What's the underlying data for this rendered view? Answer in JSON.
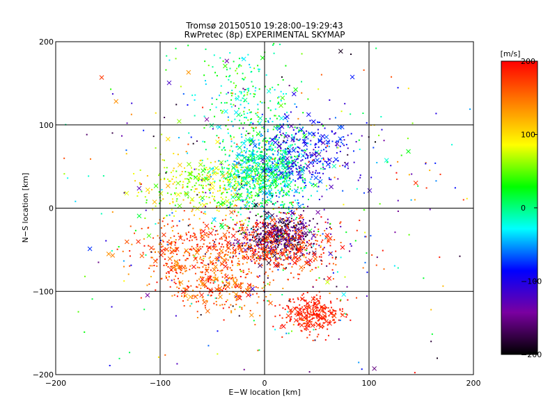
{
  "chart_data": {
    "type": "scatter",
    "title": "Tromsø 20150510 19:28:00–19:29:43",
    "subtitle": "RwPretec (8p) EXPERIMENTAL SKYMAP",
    "xlabel": "E−W location [km]",
    "ylabel": "N−S location [km]",
    "xlim": [
      -200,
      200
    ],
    "ylim": [
      -200,
      200
    ],
    "xticks": [
      -200,
      -100,
      0,
      100,
      200
    ],
    "yticks": [
      -200,
      -100,
      0,
      100,
      200
    ],
    "xtick_labels": [
      "−200",
      "−100",
      "0",
      "100",
      "200"
    ],
    "ytick_labels": [
      "−200",
      "−100",
      "0",
      "100",
      "200"
    ],
    "grid": true,
    "markers": [
      "dot",
      "x"
    ],
    "colorbar": {
      "label": "[m/s]",
      "min": -200,
      "max": 200,
      "ticks": [
        -200,
        -100,
        0,
        100,
        200
      ],
      "tick_labels": [
        "−200",
        "−100",
        "0",
        "100",
        "200"
      ],
      "colormap": [
        "#000000",
        "#7a00a0",
        "#0000ff",
        "#00ffff",
        "#00ff00",
        "#ffff00",
        "#ff8000",
        "#ff0000"
      ]
    },
    "clusters": [
      {
        "x": 0,
        "y": 45,
        "sx": 22,
        "sy": 28,
        "n": 900,
        "vmin": -60,
        "vmax": 40
      },
      {
        "x": 40,
        "y": 65,
        "sx": 22,
        "sy": 22,
        "n": 300,
        "vmin": -130,
        "vmax": -60
      },
      {
        "x": 15,
        "y": -35,
        "sx": 18,
        "sy": 14,
        "n": 500,
        "vmin": -200,
        "vmax": -120
      },
      {
        "x": 0,
        "y": -45,
        "sx": 35,
        "sy": 18,
        "n": 500,
        "vmin": 150,
        "vmax": 200
      },
      {
        "x": 45,
        "y": -125,
        "sx": 15,
        "sy": 10,
        "n": 300,
        "vmin": 170,
        "vmax": 200
      },
      {
        "x": -80,
        "y": -55,
        "sx": 25,
        "sy": 20,
        "n": 280,
        "vmin": 130,
        "vmax": 200
      },
      {
        "x": -40,
        "y": -90,
        "sx": 25,
        "sy": 20,
        "n": 250,
        "vmin": 120,
        "vmax": 200
      },
      {
        "x": -60,
        "y": 25,
        "sx": 30,
        "sy": 20,
        "n": 300,
        "vmin": 30,
        "vmax": 120
      },
      {
        "x": -20,
        "y": 135,
        "sx": 25,
        "sy": 30,
        "n": 200,
        "vmin": -40,
        "vmax": 60
      },
      {
        "x": 0,
        "y": 0,
        "sx": 110,
        "sy": 110,
        "n": 500,
        "vmin": -200,
        "vmax": 200
      }
    ]
  }
}
